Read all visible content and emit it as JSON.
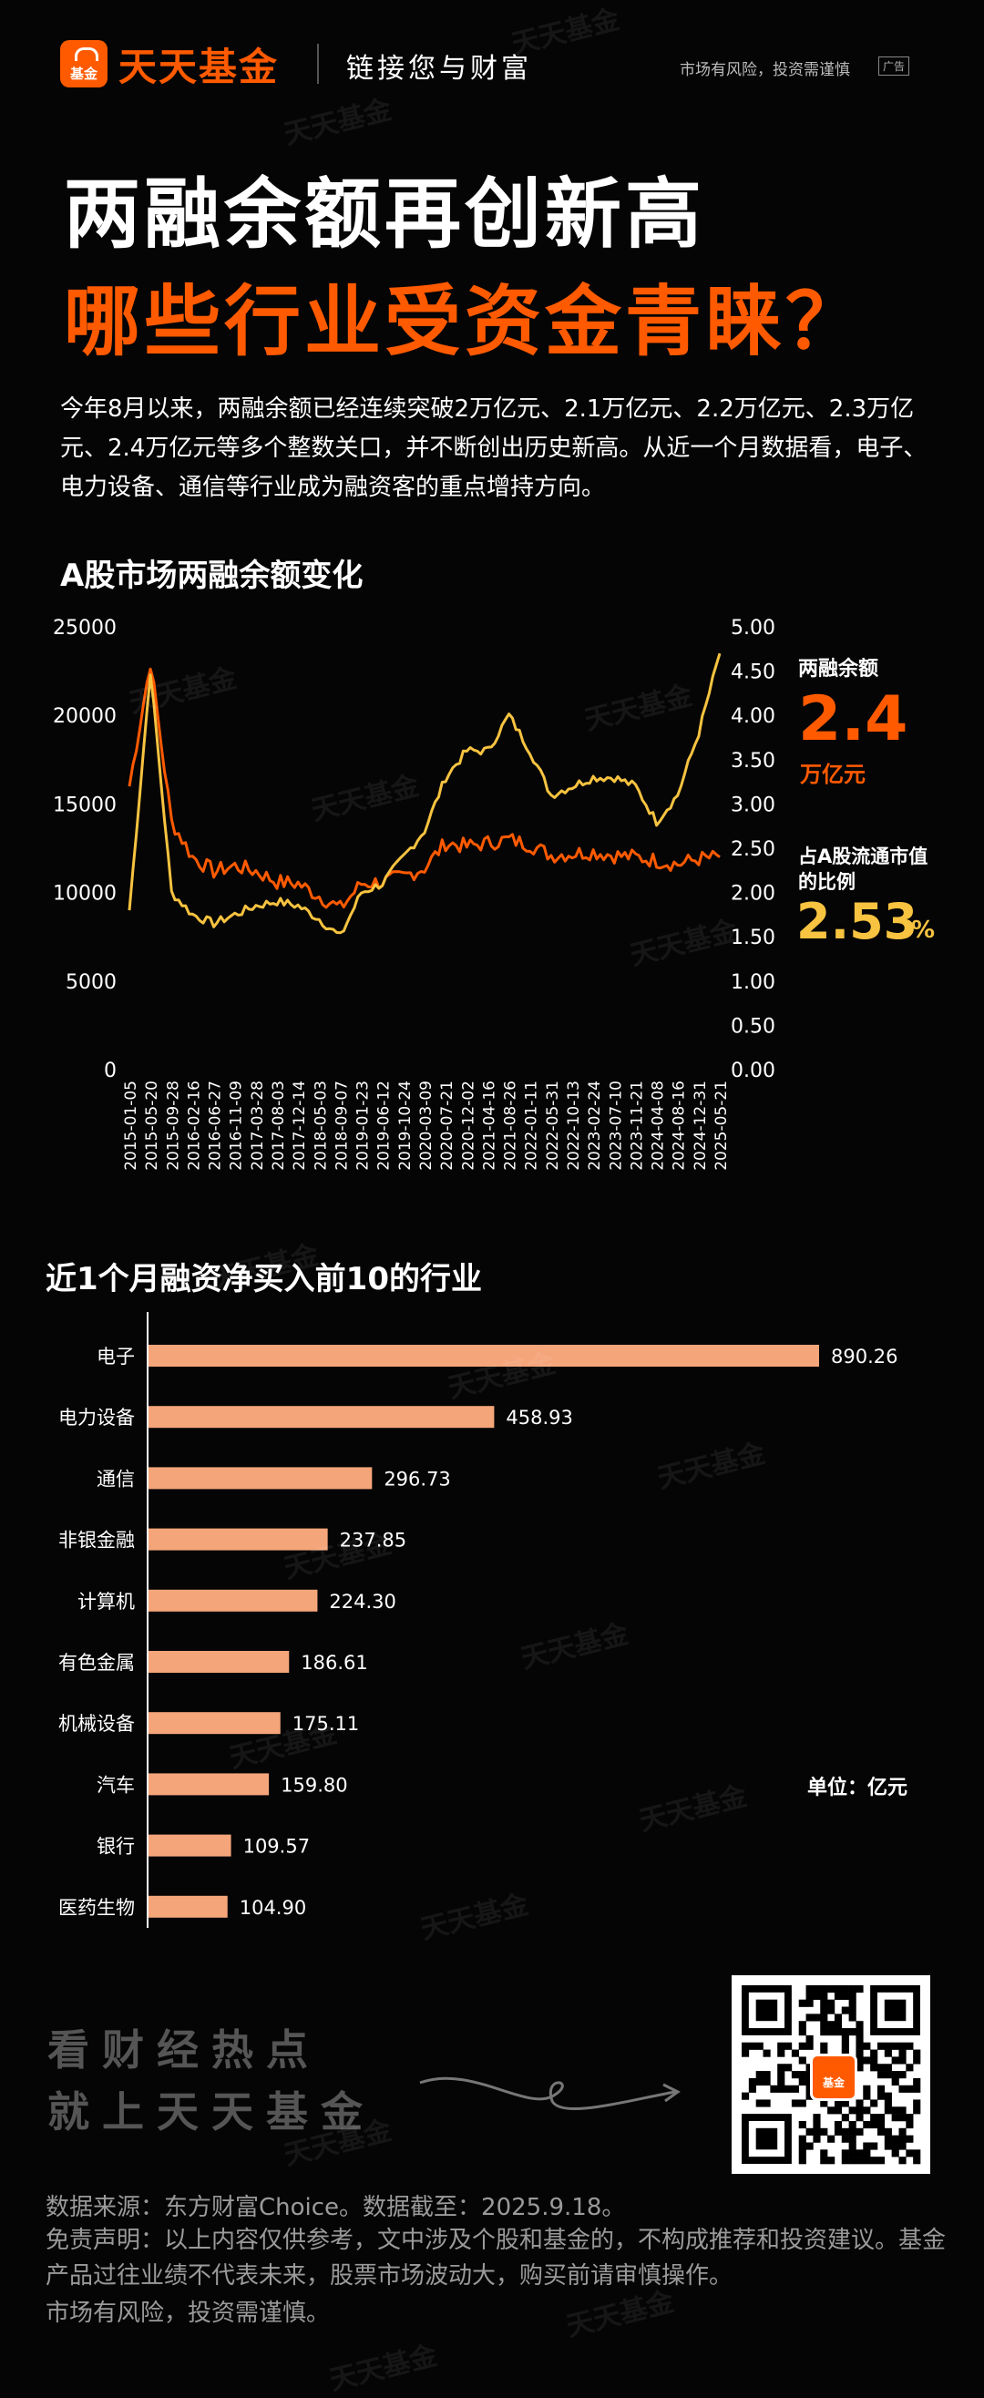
{
  "header": {
    "logo_icon_text": "基金",
    "brand": "天天基金",
    "slogan": "链接您与财富",
    "risk_notice": "市场有风险，投资需谨慎",
    "ad_badge": "广告"
  },
  "title": {
    "line1": "两融余额再创新高",
    "line2": "哪些行业受资金青睐？"
  },
  "intro": "今年8月以来，两融余额已经连续突破2万亿元、2.1万亿元、2.2万亿元、2.3万亿元、2.4万亿元等多个整数关口，并不断创出历史新高。从近一个月数据看，电子、电力设备、通信等行业成为融资客的重点增持方向。",
  "stats": {
    "balance_label": "两融余额",
    "balance_value": "2.4",
    "balance_unit": "万亿元",
    "ratio_label": "占A股流通市值的比例",
    "ratio_value": "2.53",
    "ratio_unit": "%"
  },
  "chart_data": [
    {
      "type": "line",
      "title": "A股市场两融余额变化",
      "x": [
        "2015-01-05",
        "2015-05-20",
        "2015-09-28",
        "2016-02-16",
        "2016-06-27",
        "2016-11-09",
        "2017-03-28",
        "2017-08-03",
        "2017-12-14",
        "2018-05-03",
        "2018-09-07",
        "2019-01-23",
        "2019-06-12",
        "2019-10-24",
        "2020-03-09",
        "2020-07-21",
        "2020-12-02",
        "2021-04-16",
        "2021-08-26",
        "2022-01-11",
        "2022-05-31",
        "2022-10-13",
        "2023-02-24",
        "2023-07-10",
        "2023-11-21",
        "2024-04-08",
        "2024-08-16",
        "2024-12-31",
        "2025-05-21"
      ],
      "ylim": [
        0,
        25000
      ],
      "ylim_right": [
        0.0,
        5.0
      ],
      "y_ticks": [
        "0",
        "5000",
        "10000",
        "15000",
        "20000",
        "25000"
      ],
      "y_ticks_right": [
        "0.00",
        "0.50",
        "1.00",
        "1.50",
        "2.00",
        "2.50",
        "3.00",
        "3.50",
        "4.00",
        "4.50",
        "5.00"
      ],
      "series": [
        {
          "color": "#ff5a00",
          "axis": "left",
          "values": [
            16000,
            23000,
            14000,
            12000,
            11200,
            11500,
            11200,
            10600,
            10500,
            9800,
            9100,
            10500,
            10600,
            10900,
            11400,
            12800,
            12600,
            12800,
            13000,
            12700,
            12100,
            12200,
            12300,
            12100,
            12000,
            11800,
            11600,
            11900,
            12000
          ]
        },
        {
          "color": "#f7c340",
          "axis": "right",
          "values": [
            1.8,
            4.5,
            2.0,
            1.75,
            1.65,
            1.75,
            1.85,
            1.9,
            1.85,
            1.7,
            1.5,
            2.0,
            2.1,
            2.4,
            2.7,
            3.3,
            3.6,
            3.6,
            4.0,
            3.6,
            3.1,
            3.2,
            3.3,
            3.3,
            3.2,
            2.8,
            3.1,
            3.8,
            4.7
          ]
        }
      ]
    },
    {
      "type": "bar",
      "title": "近1个月融资净买入前10的行业",
      "categories": [
        "电子",
        "电力设备",
        "通信",
        "非银金融",
        "计算机",
        "有色金属",
        "机械设备",
        "汽车",
        "银行",
        "医药生物"
      ],
      "values": [
        890.26,
        458.93,
        296.73,
        237.85,
        224.3,
        186.61,
        175.11,
        159.8,
        109.57,
        104.9
      ],
      "value_labels": [
        "890.26",
        "458.93",
        "296.73",
        "237.85",
        "224.30",
        "186.61",
        "175.11",
        "159.80",
        "109.57",
        "104.90"
      ],
      "unit": "单位：亿元",
      "color": "#f5a57a"
    }
  ],
  "footer": {
    "cta_line1": "看财经热点",
    "cta_line2": "就上天天基金",
    "qr_logo_text": "基金",
    "source": "数据来源：东方财富Choice。数据截至：2025.9.18。",
    "disclaimer": "免责声明：以上内容仅供参考，文中涉及个股和基金的，不构成推荐和投资建议。基金产品过往业绩不代表未来，股票市场波动大，购买前请审慎操作。",
    "risk": "市场有风险，投资需谨慎。"
  },
  "watermark": "天天基金"
}
